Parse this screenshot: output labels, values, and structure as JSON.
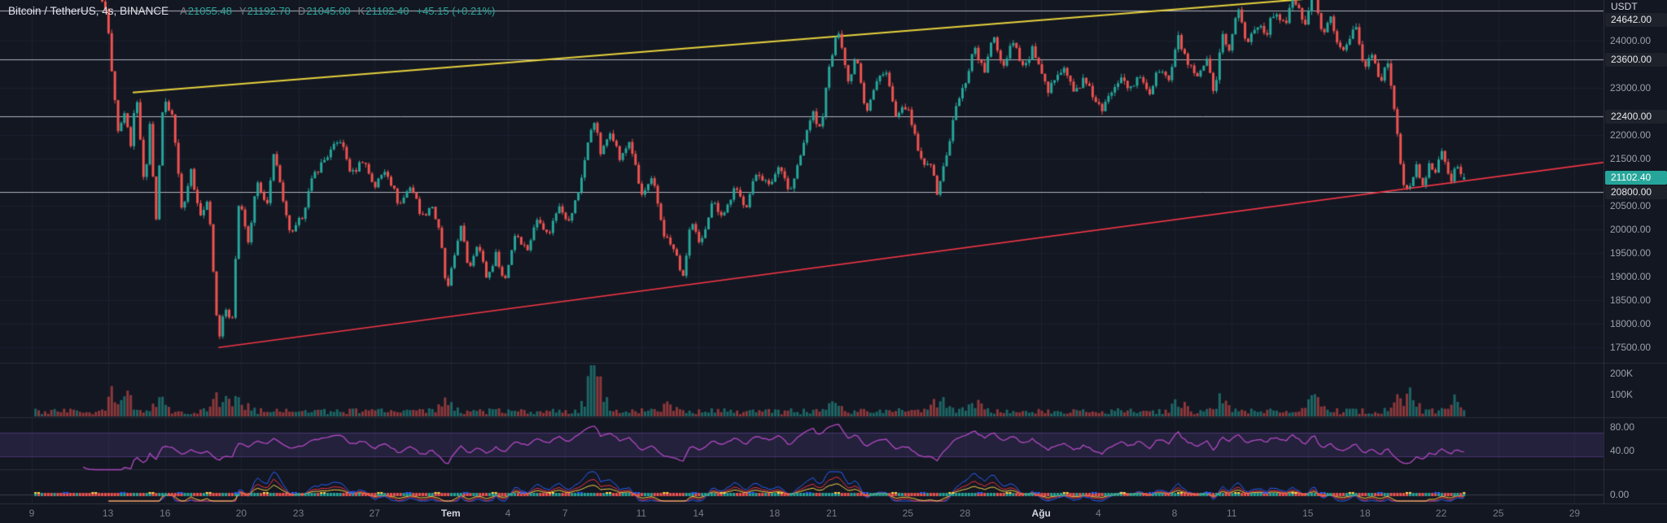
{
  "header": {
    "title_full": "Bitcoin / TetherUS, 4s, BINANCE",
    "ohlc": {
      "o_label": "A",
      "o": "21055.48",
      "h_label": "Y",
      "h": "21192.70",
      "l_label": "D",
      "l": "21045.00",
      "c_label": "K",
      "c": "21102.40",
      "change": "+45.15 (+0.21%)"
    }
  },
  "price_axis": {
    "currency": "USDT"
  },
  "chart_data": {
    "type": "candlestick",
    "symbol": "Bitcoin / TetherUS",
    "interval": "4s",
    "exchange": "BINANCE",
    "ohlc": {
      "open": 21055.48,
      "high": 21192.7,
      "low": 21045.0,
      "close": 21102.4,
      "change_abs": 45.15,
      "change_pct": 0.21
    },
    "ylim": [
      17175,
      24860
    ],
    "price_ticks": [
      24000,
      23000,
      22000,
      21500,
      20500,
      20000,
      19500,
      19000,
      18500,
      18000,
      17500
    ],
    "levels": [
      24642,
      23600,
      22400,
      20800
    ],
    "volume_ticks": [
      {
        "label": "200K",
        "v": 200000
      },
      {
        "label": "100K",
        "v": 100000
      }
    ],
    "rsi_ticks": [
      80,
      40
    ],
    "osc_ticks": [
      0
    ],
    "time_ticks": [
      [
        "9",
        0
      ],
      [
        "13",
        4
      ],
      [
        "16",
        7
      ],
      [
        "20",
        11
      ],
      [
        "23",
        14
      ],
      [
        "27",
        18
      ],
      [
        "Tem",
        22,
        1
      ],
      [
        "4",
        25
      ],
      [
        "7",
        28
      ],
      [
        "11",
        32
      ],
      [
        "14",
        35
      ],
      [
        "18",
        39
      ],
      [
        "21",
        42
      ],
      [
        "25",
        46
      ],
      [
        "28",
        49
      ],
      [
        "Ağu",
        53,
        1
      ],
      [
        "4",
        56
      ],
      [
        "8",
        60
      ],
      [
        "11",
        63
      ],
      [
        "15",
        67
      ],
      [
        "18",
        70
      ],
      [
        "22",
        74
      ],
      [
        "25",
        77
      ],
      [
        "29",
        81
      ]
    ],
    "series_start": 0.2,
    "series_end": 75.35,
    "candles_per_day": 6,
    "last_candle": {
      "o": 21055.48,
      "h": 21192.7,
      "l": 21045.0,
      "c": 21102.4
    },
    "price_path": [
      [
        0,
        27500
      ],
      [
        2.5,
        26500
      ],
      [
        3.9,
        24642
      ],
      [
        4.2,
        23400
      ],
      [
        4.55,
        22000
      ],
      [
        4.9,
        22600
      ],
      [
        5.2,
        21800
      ],
      [
        5.5,
        22950
      ],
      [
        5.9,
        20900
      ],
      [
        6.2,
        22150
      ],
      [
        6.55,
        20150
      ],
      [
        6.9,
        22800
      ],
      [
        7.4,
        22400
      ],
      [
        7.9,
        20300
      ],
      [
        8.35,
        21300
      ],
      [
        8.8,
        20350
      ],
      [
        9.3,
        20550
      ],
      [
        9.8,
        17600
      ],
      [
        10.15,
        18350
      ],
      [
        10.5,
        17950
      ],
      [
        10.9,
        20700
      ],
      [
        11.35,
        19650
      ],
      [
        11.8,
        21000
      ],
      [
        12.3,
        20450
      ],
      [
        12.75,
        21700
      ],
      [
        13.25,
        20400
      ],
      [
        13.65,
        19850
      ],
      [
        14.2,
        20300
      ],
      [
        14.8,
        21150
      ],
      [
        15.5,
        21550
      ],
      [
        16.2,
        21900
      ],
      [
        16.8,
        21150
      ],
      [
        17.4,
        21500
      ],
      [
        18,
        20900
      ],
      [
        18.6,
        21300
      ],
      [
        19.3,
        20500
      ],
      [
        19.9,
        20950
      ],
      [
        20.5,
        20250
      ],
      [
        21,
        20550
      ],
      [
        21.45,
        19850
      ],
      [
        21.8,
        18620
      ],
      [
        22.15,
        19350
      ],
      [
        22.5,
        20100
      ],
      [
        22.95,
        19150
      ],
      [
        23.4,
        19750
      ],
      [
        23.9,
        18950
      ],
      [
        24.4,
        19500
      ],
      [
        24.8,
        18850
      ],
      [
        25.4,
        19950
      ],
      [
        26,
        19550
      ],
      [
        26.6,
        20300
      ],
      [
        27.1,
        19850
      ],
      [
        27.7,
        20550
      ],
      [
        28.2,
        20150
      ],
      [
        28.7,
        20800
      ],
      [
        29.2,
        21800
      ],
      [
        29.5,
        22400
      ],
      [
        29.9,
        21550
      ],
      [
        30.4,
        22150
      ],
      [
        30.9,
        21450
      ],
      [
        31.4,
        21900
      ],
      [
        32,
        20700
      ],
      [
        32.6,
        21050
      ],
      [
        33.2,
        19900
      ],
      [
        33.8,
        19500
      ],
      [
        34.2,
        18950
      ],
      [
        34.6,
        20200
      ],
      [
        35.1,
        19600
      ],
      [
        35.7,
        20600
      ],
      [
        36.3,
        20300
      ],
      [
        36.9,
        20850
      ],
      [
        37.5,
        20500
      ],
      [
        38.1,
        21250
      ],
      [
        38.7,
        20900
      ],
      [
        39.3,
        21400
      ],
      [
        39.8,
        20750
      ],
      [
        40.4,
        21600
      ],
      [
        40.95,
        22500
      ],
      [
        41.4,
        22100
      ],
      [
        41.9,
        23500
      ],
      [
        42.4,
        24280
      ],
      [
        42.85,
        23100
      ],
      [
        43.3,
        23750
      ],
      [
        43.8,
        22480
      ],
      [
        44.3,
        23050
      ],
      [
        44.8,
        23450
      ],
      [
        45.4,
        22300
      ],
      [
        45.9,
        22650
      ],
      [
        46.4,
        21900
      ],
      [
        46.8,
        21280
      ],
      [
        47.15,
        21550
      ],
      [
        47.5,
        20750
      ],
      [
        48,
        21500
      ],
      [
        48.5,
        22550
      ],
      [
        49,
        23100
      ],
      [
        49.5,
        23900
      ],
      [
        50,
        23300
      ],
      [
        50.5,
        24100
      ],
      [
        51,
        23450
      ],
      [
        51.5,
        24050
      ],
      [
        52.1,
        23400
      ],
      [
        52.6,
        23850
      ],
      [
        53,
        23250
      ],
      [
        53.4,
        22850
      ],
      [
        53.8,
        23350
      ],
      [
        54.2,
        23450
      ],
      [
        54.7,
        22900
      ],
      [
        55.2,
        23150
      ],
      [
        55.7,
        22850
      ],
      [
        56.2,
        22480
      ],
      [
        56.7,
        22950
      ],
      [
        57.2,
        23300
      ],
      [
        57.7,
        22950
      ],
      [
        58.2,
        23250
      ],
      [
        58.7,
        22900
      ],
      [
        59.2,
        23400
      ],
      [
        59.7,
        23150
      ],
      [
        60.2,
        24050
      ],
      [
        60.7,
        23500
      ],
      [
        61.2,
        23150
      ],
      [
        61.7,
        23600
      ],
      [
        62.1,
        22720
      ],
      [
        62.5,
        24150
      ],
      [
        62.9,
        23800
      ],
      [
        63.3,
        24750
      ],
      [
        63.8,
        23900
      ],
      [
        64.3,
        24400
      ],
      [
        64.8,
        24150
      ],
      [
        65.3,
        24650
      ],
      [
        65.8,
        24350
      ],
      [
        66.3,
        24950
      ],
      [
        66.8,
        24250
      ],
      [
        67.3,
        25150
      ],
      [
        67.8,
        24100
      ],
      [
        68.2,
        24450
      ],
      [
        68.7,
        23780
      ],
      [
        69.1,
        24000
      ],
      [
        69.5,
        24430
      ],
      [
        69.9,
        23400
      ],
      [
        70.3,
        23700
      ],
      [
        70.8,
        23200
      ],
      [
        71.2,
        23450
      ],
      [
        71.6,
        22400
      ],
      [
        71.95,
        21100
      ],
      [
        72.3,
        20780
      ],
      [
        72.7,
        21350
      ],
      [
        73,
        20870
      ],
      [
        73.4,
        21380
      ],
      [
        73.7,
        21150
      ],
      [
        74,
        21720
      ],
      [
        74.3,
        21280
      ],
      [
        74.55,
        20920
      ],
      [
        74.8,
        21500
      ],
      [
        75.1,
        21050
      ],
      [
        75.35,
        21102.4
      ]
    ],
    "volume": {
      "max": 240000,
      "events": [
        {
          "d": 4.4,
          "f": 3.4
        },
        {
          "d": 5.0,
          "f": 2.0
        },
        {
          "d": 6.6,
          "f": 2.0
        },
        {
          "d": 9.9,
          "f": 2.8
        },
        {
          "d": 10.9,
          "f": 1.8
        },
        {
          "d": 21.8,
          "f": 2.0
        },
        {
          "d": 29.5,
          "f": 8.5
        },
        {
          "d": 29.9,
          "f": 2.2
        },
        {
          "d": 33.5,
          "f": 1.5
        },
        {
          "d": 42.3,
          "f": 2.2
        },
        {
          "d": 47.6,
          "f": 2.0
        },
        {
          "d": 49.6,
          "f": 1.6
        },
        {
          "d": 60.2,
          "f": 1.5
        },
        {
          "d": 62.4,
          "f": 2.0
        },
        {
          "d": 67.3,
          "f": 1.8
        },
        {
          "d": 71.9,
          "f": 2.6
        },
        {
          "d": 72.4,
          "f": 1.8
        },
        {
          "d": 74.6,
          "f": 1.8
        }
      ]
    },
    "trendlines": [
      {
        "color": "#e8d33d",
        "width": 2,
        "p1": [
          5.3,
          22900
        ],
        "p2": [
          67.5,
          24900
        ]
      },
      {
        "color": "#f23645",
        "width": 1.5,
        "p1": [
          9.8,
          17500
        ],
        "p2": [
          84,
          21500
        ]
      }
    ],
    "colors": {
      "up": "#26a69a",
      "down": "#ef5350",
      "grid": "#1d2230",
      "separator": "#2a2e39",
      "level_line": "#b2b5be",
      "rsi": "#ab47bc",
      "osc_lines": [
        "#2962ff",
        "#f23645",
        "#ffd54a"
      ],
      "bg": "#131722"
    }
  }
}
